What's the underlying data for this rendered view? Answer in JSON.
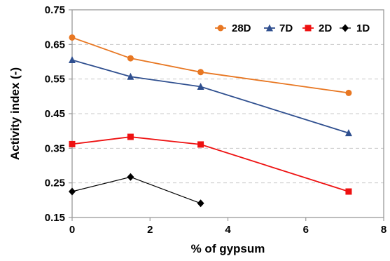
{
  "chart_data": {
    "type": "line",
    "xlabel": "% of gypsum",
    "ylabel": "Activity index (-)",
    "xlim": [
      0,
      8
    ],
    "ylim": [
      0.15,
      0.75
    ],
    "xticks": [
      "0",
      "2",
      "4",
      "6",
      "8"
    ],
    "yticks": [
      "0.15",
      "0.25",
      "0.35",
      "0.45",
      "0.55",
      "0.65",
      "0.75"
    ],
    "grid": "horizontal dashed",
    "legend_position": "top-right",
    "series": [
      {
        "name": "28D",
        "color": "#E87722",
        "marker": "circle",
        "x": [
          0,
          1.5,
          3.3,
          7.1
        ],
        "y": [
          0.67,
          0.61,
          0.57,
          0.51
        ]
      },
      {
        "name": "7D",
        "color": "#2F4F8F",
        "marker": "triangle",
        "x": [
          0,
          1.5,
          3.3,
          7.1
        ],
        "y": [
          0.605,
          0.557,
          0.528,
          0.394
        ]
      },
      {
        "name": "2D",
        "color": "#EE1111",
        "marker": "square",
        "x": [
          0,
          1.5,
          3.3,
          7.1
        ],
        "y": [
          0.362,
          0.383,
          0.361,
          0.225
        ]
      },
      {
        "name": "1D",
        "color": "#000000",
        "marker": "diamond",
        "x": [
          0,
          1.5,
          3.3
        ],
        "y": [
          0.225,
          0.267,
          0.191
        ]
      }
    ]
  }
}
